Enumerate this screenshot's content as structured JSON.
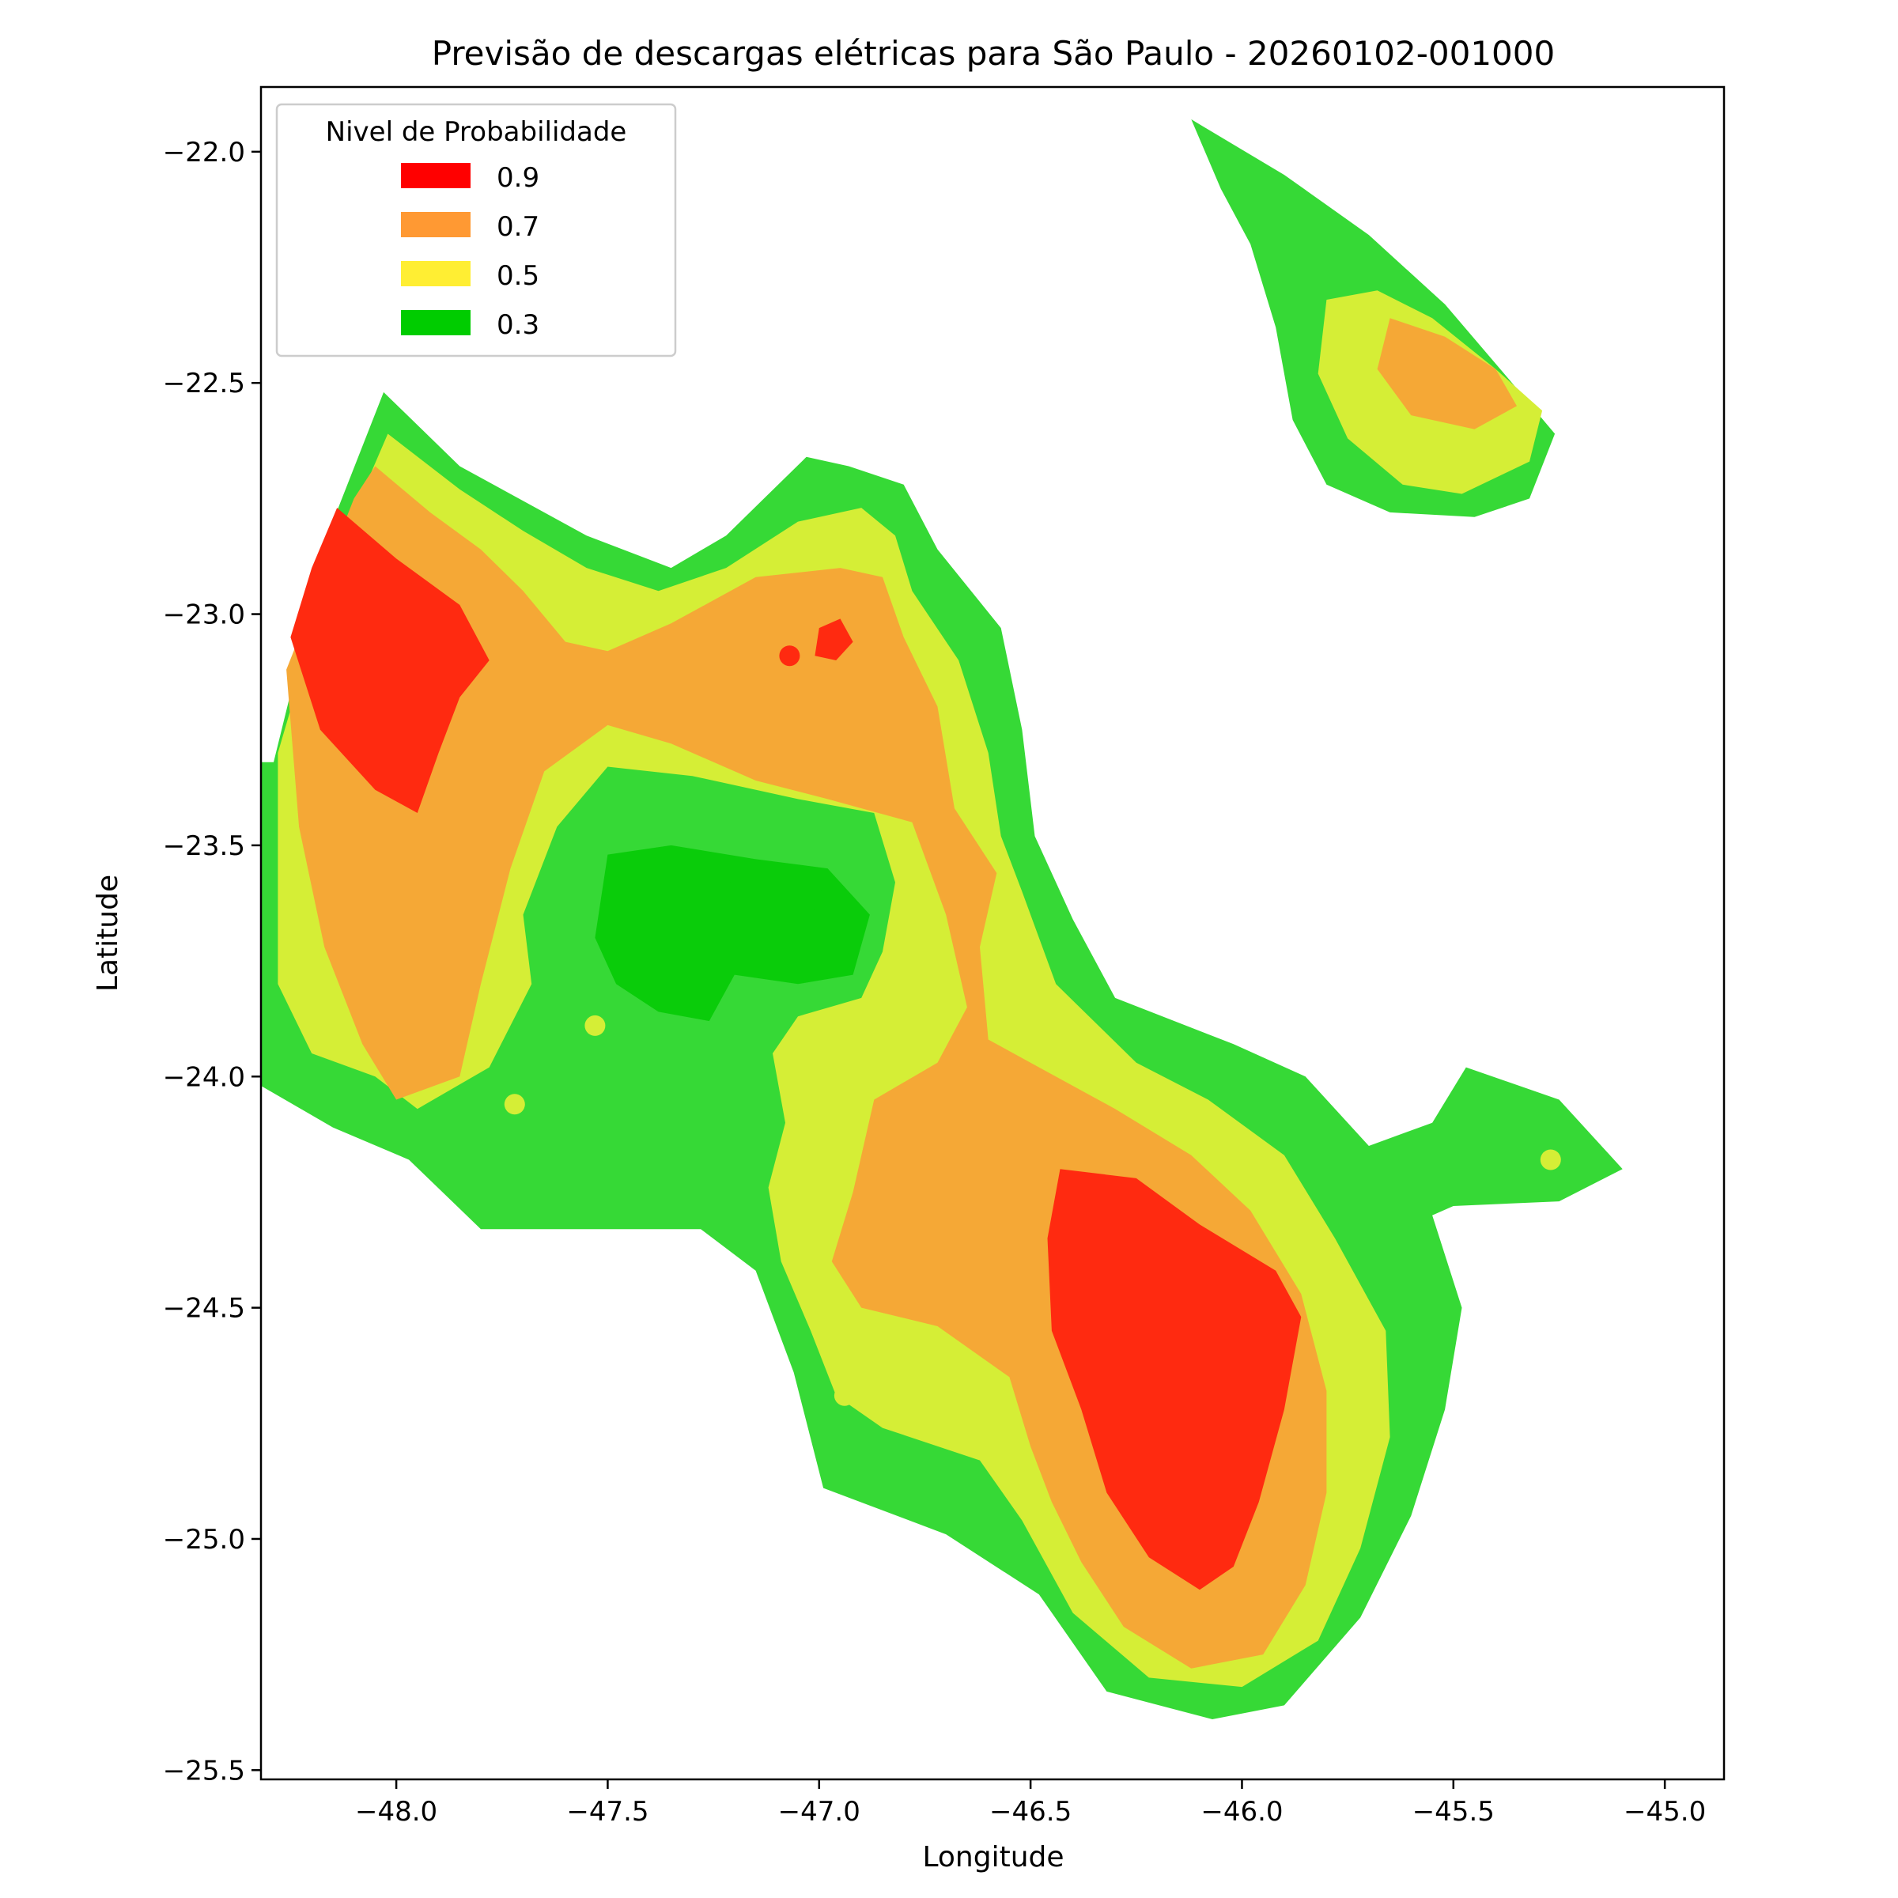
{
  "chart_data": {
    "type": "contour",
    "title": "Previsão de descargas elétricas para São Paulo - 20260102-001000",
    "xlabel": "Longitude",
    "ylabel": "Latitude",
    "xlim": [
      -48.32,
      -44.86
    ],
    "ylim": [
      -25.52,
      -21.86
    ],
    "xticks": [
      -48.0,
      -47.5,
      -47.0,
      -46.5,
      -46.0,
      -45.5,
      -45.0
    ],
    "xtick_labels": [
      "−48.0",
      "−47.5",
      "−47.0",
      "−46.5",
      "−46.0",
      "−45.5",
      "−45.0"
    ],
    "yticks": [
      -22.0,
      -22.5,
      -23.0,
      -23.5,
      -24.0,
      -24.5,
      -25.0,
      -25.5
    ],
    "ytick_labels": [
      "−22.0",
      "−22.5",
      "−23.0",
      "−23.5",
      "−24.0",
      "−24.5",
      "−25.0",
      "−25.5"
    ],
    "legend": {
      "title": "Nivel de Probabilidade",
      "position": "upper-left",
      "entries": [
        {
          "label": "0.9",
          "color": "#ff0000"
        },
        {
          "label": "0.7",
          "color": "#ff9933"
        },
        {
          "label": "0.5",
          "color": "#ffee33"
        },
        {
          "label": "0.3",
          "color": "#00cc00"
        }
      ]
    },
    "fill_colors": {
      "0.3": "#36d936",
      "0.3_core": "#0acc0a",
      "0.5": "#d5ee36",
      "0.7": "#f5a836",
      "0.9": "#ff2a10"
    },
    "regions": [
      {
        "level": "0.3",
        "points": [
          [
            -48.29,
            -23.32
          ],
          [
            -48.15,
            -22.8
          ],
          [
            -48.03,
            -22.52
          ],
          [
            -47.85,
            -22.68
          ],
          [
            -47.55,
            -22.83
          ],
          [
            -47.35,
            -22.9
          ],
          [
            -47.22,
            -22.83
          ],
          [
            -47.03,
            -22.66
          ],
          [
            -46.93,
            -22.68
          ],
          [
            -46.8,
            -22.72
          ],
          [
            -46.72,
            -22.86
          ],
          [
            -46.57,
            -23.03
          ],
          [
            -46.52,
            -23.25
          ],
          [
            -46.49,
            -23.48
          ],
          [
            -46.4,
            -23.66
          ],
          [
            -46.3,
            -23.83
          ],
          [
            -46.02,
            -23.93
          ],
          [
            -45.85,
            -24.0
          ],
          [
            -45.7,
            -24.15
          ],
          [
            -45.55,
            -24.1
          ],
          [
            -45.47,
            -23.98
          ],
          [
            -45.25,
            -24.05
          ],
          [
            -45.1,
            -24.2
          ],
          [
            -45.25,
            -24.27
          ],
          [
            -45.5,
            -24.28
          ],
          [
            -45.55,
            -24.3
          ],
          [
            -45.48,
            -24.5
          ],
          [
            -45.52,
            -24.72
          ],
          [
            -45.6,
            -24.95
          ],
          [
            -45.72,
            -25.17
          ],
          [
            -45.9,
            -25.36
          ],
          [
            -46.07,
            -25.39
          ],
          [
            -46.32,
            -25.33
          ],
          [
            -46.48,
            -25.12
          ],
          [
            -46.7,
            -24.99
          ],
          [
            -46.99,
            -24.89
          ],
          [
            -47.06,
            -24.64
          ],
          [
            -47.15,
            -24.42
          ],
          [
            -47.28,
            -24.33
          ],
          [
            -47.55,
            -24.33
          ],
          [
            -47.8,
            -24.33
          ],
          [
            -47.97,
            -24.18
          ],
          [
            -48.15,
            -24.11
          ],
          [
            -48.32,
            -24.02
          ],
          [
            -48.32,
            -23.32
          ]
        ]
      },
      {
        "level": "0.3",
        "points": [
          [
            -46.12,
            -21.93
          ],
          [
            -45.9,
            -22.05
          ],
          [
            -45.7,
            -22.18
          ],
          [
            -45.52,
            -22.33
          ],
          [
            -45.38,
            -22.48
          ],
          [
            -45.26,
            -22.61
          ],
          [
            -45.32,
            -22.75
          ],
          [
            -45.45,
            -22.79
          ],
          [
            -45.65,
            -22.78
          ],
          [
            -45.8,
            -22.72
          ],
          [
            -45.88,
            -22.58
          ],
          [
            -45.92,
            -22.38
          ],
          [
            -45.98,
            -22.2
          ],
          [
            -46.05,
            -22.08
          ],
          [
            -46.12,
            -21.93
          ]
        ]
      },
      {
        "level": "0.5",
        "points": [
          [
            -48.28,
            -23.3
          ],
          [
            -48.2,
            -23.05
          ],
          [
            -48.1,
            -22.78
          ],
          [
            -48.02,
            -22.61
          ],
          [
            -47.85,
            -22.73
          ],
          [
            -47.7,
            -22.82
          ],
          [
            -47.55,
            -22.9
          ],
          [
            -47.38,
            -22.95
          ],
          [
            -47.22,
            -22.9
          ],
          [
            -47.05,
            -22.8
          ],
          [
            -46.9,
            -22.77
          ],
          [
            -46.82,
            -22.83
          ],
          [
            -46.78,
            -22.95
          ],
          [
            -46.67,
            -23.1
          ],
          [
            -46.6,
            -23.3
          ],
          [
            -46.57,
            -23.48
          ],
          [
            -46.52,
            -23.6
          ],
          [
            -46.44,
            -23.8
          ],
          [
            -46.25,
            -23.97
          ],
          [
            -46.08,
            -24.05
          ],
          [
            -45.9,
            -24.17
          ],
          [
            -45.78,
            -24.35
          ],
          [
            -45.66,
            -24.55
          ],
          [
            -45.65,
            -24.78
          ],
          [
            -45.72,
            -25.02
          ],
          [
            -45.82,
            -25.22
          ],
          [
            -46.0,
            -25.32
          ],
          [
            -46.22,
            -25.3
          ],
          [
            -46.4,
            -25.16
          ],
          [
            -46.52,
            -24.96
          ],
          [
            -46.62,
            -24.83
          ],
          [
            -46.85,
            -24.76
          ],
          [
            -46.96,
            -24.69
          ],
          [
            -47.02,
            -24.55
          ],
          [
            -47.09,
            -24.4
          ],
          [
            -47.12,
            -24.24
          ],
          [
            -47.08,
            -24.1
          ],
          [
            -47.11,
            -23.95
          ],
          [
            -47.05,
            -23.87
          ],
          [
            -46.9,
            -23.83
          ],
          [
            -46.85,
            -23.73
          ],
          [
            -46.82,
            -23.58
          ],
          [
            -46.87,
            -23.43
          ],
          [
            -47.05,
            -23.4
          ],
          [
            -47.3,
            -23.35
          ],
          [
            -47.5,
            -23.33
          ],
          [
            -47.62,
            -23.46
          ],
          [
            -47.7,
            -23.65
          ],
          [
            -47.68,
            -23.8
          ],
          [
            -47.78,
            -23.98
          ],
          [
            -47.95,
            -24.07
          ],
          [
            -48.05,
            -24.0
          ],
          [
            -48.2,
            -23.95
          ],
          [
            -48.28,
            -23.8
          ],
          [
            -48.28,
            -23.3
          ]
        ]
      },
      {
        "level": "0.5",
        "points": [
          [
            -45.8,
            -22.32
          ],
          [
            -45.68,
            -22.3
          ],
          [
            -45.55,
            -22.36
          ],
          [
            -45.4,
            -22.47
          ],
          [
            -45.29,
            -22.56
          ],
          [
            -45.32,
            -22.67
          ],
          [
            -45.48,
            -22.74
          ],
          [
            -45.62,
            -22.72
          ],
          [
            -45.75,
            -22.62
          ],
          [
            -45.82,
            -22.48
          ],
          [
            -45.8,
            -22.32
          ]
        ]
      },
      {
        "level": "0.7",
        "points": [
          [
            -48.26,
            -23.12
          ],
          [
            -48.1,
            -22.75
          ],
          [
            -48.05,
            -22.68
          ],
          [
            -47.92,
            -22.78
          ],
          [
            -47.8,
            -22.86
          ],
          [
            -47.7,
            -22.95
          ],
          [
            -47.6,
            -23.06
          ],
          [
            -47.5,
            -23.08
          ],
          [
            -47.35,
            -23.02
          ],
          [
            -47.15,
            -22.92
          ],
          [
            -46.95,
            -22.9
          ],
          [
            -46.85,
            -22.92
          ],
          [
            -46.8,
            -23.05
          ],
          [
            -46.72,
            -23.2
          ],
          [
            -46.68,
            -23.42
          ],
          [
            -46.58,
            -23.56
          ],
          [
            -46.62,
            -23.72
          ],
          [
            -46.6,
            -23.92
          ],
          [
            -46.48,
            -23.98
          ],
          [
            -46.3,
            -24.07
          ],
          [
            -46.12,
            -24.17
          ],
          [
            -45.98,
            -24.29
          ],
          [
            -45.86,
            -24.47
          ],
          [
            -45.8,
            -24.68
          ],
          [
            -45.8,
            -24.9
          ],
          [
            -45.85,
            -25.1
          ],
          [
            -45.95,
            -25.25
          ],
          [
            -46.12,
            -25.28
          ],
          [
            -46.28,
            -25.19
          ],
          [
            -46.38,
            -25.05
          ],
          [
            -46.45,
            -24.92
          ],
          [
            -46.5,
            -24.8
          ],
          [
            -46.55,
            -24.65
          ],
          [
            -46.72,
            -24.54
          ],
          [
            -46.9,
            -24.5
          ],
          [
            -46.97,
            -24.4
          ],
          [
            -46.92,
            -24.25
          ],
          [
            -46.87,
            -24.05
          ],
          [
            -46.72,
            -23.97
          ],
          [
            -46.65,
            -23.85
          ],
          [
            -46.7,
            -23.65
          ],
          [
            -46.78,
            -23.45
          ],
          [
            -46.98,
            -23.4
          ],
          [
            -47.15,
            -23.36
          ],
          [
            -47.35,
            -23.28
          ],
          [
            -47.5,
            -23.24
          ],
          [
            -47.65,
            -23.34
          ],
          [
            -47.73,
            -23.55
          ],
          [
            -47.8,
            -23.8
          ],
          [
            -47.85,
            -24.0
          ],
          [
            -48.0,
            -24.05
          ],
          [
            -48.08,
            -23.93
          ],
          [
            -48.17,
            -23.72
          ],
          [
            -48.23,
            -23.46
          ],
          [
            -48.26,
            -23.12
          ]
        ]
      },
      {
        "level": "0.7",
        "points": [
          [
            -45.65,
            -22.36
          ],
          [
            -45.52,
            -22.4
          ],
          [
            -45.4,
            -22.47
          ],
          [
            -45.35,
            -22.55
          ],
          [
            -45.45,
            -22.6
          ],
          [
            -45.6,
            -22.57
          ],
          [
            -45.68,
            -22.47
          ],
          [
            -45.65,
            -22.36
          ]
        ]
      },
      {
        "level": "0.9",
        "points": [
          [
            -48.25,
            -23.05
          ],
          [
            -48.2,
            -22.9
          ],
          [
            -48.14,
            -22.77
          ],
          [
            -48.0,
            -22.88
          ],
          [
            -47.85,
            -22.98
          ],
          [
            -47.78,
            -23.1
          ],
          [
            -47.85,
            -23.18
          ],
          [
            -47.9,
            -23.3
          ],
          [
            -47.95,
            -23.43
          ],
          [
            -48.05,
            -23.38
          ],
          [
            -48.18,
            -23.25
          ],
          [
            -48.25,
            -23.05
          ]
        ]
      },
      {
        "level": "0.9",
        "points": [
          [
            -46.43,
            -24.2
          ],
          [
            -46.25,
            -24.22
          ],
          [
            -46.1,
            -24.32
          ],
          [
            -45.92,
            -24.42
          ],
          [
            -45.86,
            -24.52
          ],
          [
            -45.9,
            -24.72
          ],
          [
            -45.96,
            -24.92
          ],
          [
            -46.02,
            -25.06
          ],
          [
            -46.1,
            -25.11
          ],
          [
            -46.22,
            -25.04
          ],
          [
            -46.32,
            -24.9
          ],
          [
            -46.38,
            -24.72
          ],
          [
            -46.45,
            -24.55
          ],
          [
            -46.46,
            -24.35
          ],
          [
            -46.43,
            -24.2
          ]
        ]
      },
      {
        "level": "0.9",
        "points": [
          [
            -47.0,
            -23.03
          ],
          [
            -46.95,
            -23.01
          ],
          [
            -46.92,
            -23.06
          ],
          [
            -46.96,
            -23.1
          ],
          [
            -47.01,
            -23.09
          ],
          [
            -47.0,
            -23.03
          ]
        ]
      },
      {
        "level": "0.3_core",
        "points": [
          [
            -47.5,
            -23.52
          ],
          [
            -47.35,
            -23.5
          ],
          [
            -47.15,
            -23.53
          ],
          [
            -46.98,
            -23.55
          ],
          [
            -46.88,
            -23.65
          ],
          [
            -46.92,
            -23.78
          ],
          [
            -47.05,
            -23.8
          ],
          [
            -47.2,
            -23.78
          ],
          [
            -47.26,
            -23.88
          ],
          [
            -47.38,
            -23.86
          ],
          [
            -47.48,
            -23.8
          ],
          [
            -47.53,
            -23.7
          ],
          [
            -47.5,
            -23.52
          ]
        ]
      }
    ],
    "points": [
      {
        "x": -47.96,
        "y": -23.86,
        "level": "0.7"
      },
      {
        "x": -47.53,
        "y": -23.89,
        "level": "0.5"
      },
      {
        "x": -47.72,
        "y": -24.06,
        "level": "0.5"
      },
      {
        "x": -46.94,
        "y": -24.69,
        "level": "0.5"
      },
      {
        "x": -47.07,
        "y": -23.09,
        "level": "0.9"
      },
      {
        "x": -45.27,
        "y": -24.18,
        "level": "0.5"
      },
      {
        "x": -47.0,
        "y": -23.62,
        "level": "0.3_core"
      },
      {
        "x": -47.2,
        "y": -23.6,
        "level": "0.3_core"
      }
    ]
  }
}
